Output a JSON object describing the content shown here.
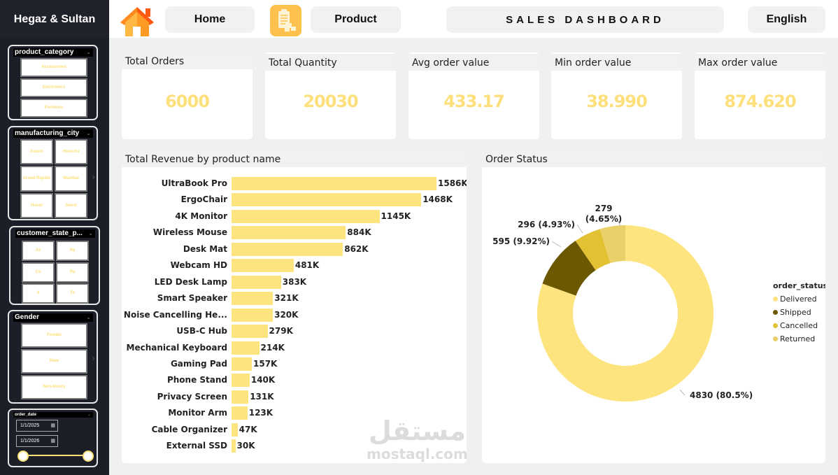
{
  "brand": "Hegaz & Sultan",
  "nav": {
    "home_label": "Home",
    "product_label": "Product",
    "dashboard_title": "SALES DASHBOARD",
    "language_label": "English",
    "home_icon": "house-icon",
    "product_icon": "clipboard-boxes-icon"
  },
  "slicers": {
    "product_category": {
      "title": "product_category",
      "options": [
        "Accessories",
        "Electronics",
        "Furniture"
      ]
    },
    "manufacturing_city": {
      "title": "manufacturing_city",
      "options": [
        "Austin",
        "Hsinchu",
        "Grand Rapids",
        "Mumbai",
        "Hanoi",
        "Seoul"
      ]
    },
    "customer_state": {
      "title": "customer_state_p...",
      "options": [
        "Az",
        "Ny",
        "Ca",
        "Pa",
        "Il",
        "Tx"
      ]
    },
    "gender": {
      "title": "Gender",
      "options": [
        "Female",
        "Male",
        "Non-binary"
      ]
    },
    "order_date": {
      "title": "order_date",
      "start": "1/1/2025",
      "end": "1/1/2026"
    }
  },
  "kpis": [
    {
      "title": "Total Orders",
      "value": "6000"
    },
    {
      "title": "Total Quantity",
      "value": "20030"
    },
    {
      "title": "Avg order value",
      "value": "433.17"
    },
    {
      "title": "Min order value",
      "value": "38.990"
    },
    {
      "title": "Max order value",
      "value": "874.620"
    }
  ],
  "colors": {
    "accent": "#fde47f",
    "sidebar_bg": "#1c1e28",
    "delivered": "#fde47f",
    "shipped": "#6b5800",
    "cancelled": "#e2c233",
    "returned": "#ead069"
  },
  "watermark": {
    "arabic": "مستقل",
    "latin": "mostaql.com"
  },
  "chart_data": [
    {
      "type": "bar",
      "orientation": "horizontal",
      "title": "Total Revenue by product name",
      "xlabel": "",
      "ylabel": "",
      "categories": [
        "UltraBook Pro",
        "ErgoChair",
        "4K Monitor",
        "Wireless Mouse",
        "Desk Mat",
        "Webcam HD",
        "LED Desk Lamp",
        "Smart Speaker",
        "Noise Cancelling He...",
        "USB-C Hub",
        "Mechanical Keyboard",
        "Gaming Pad",
        "Phone Stand",
        "Privacy Screen",
        "Monitor Arm",
        "Cable Organizer",
        "External SSD"
      ],
      "values": [
        1586,
        1468,
        1145,
        884,
        862,
        481,
        383,
        321,
        320,
        279,
        214,
        157,
        140,
        131,
        123,
        47,
        30
      ],
      "labels": [
        "1586K",
        "1468K",
        "1145K",
        "884K",
        "862K",
        "481K",
        "383K",
        "321K",
        "320K",
        "279K",
        "214K",
        "157K",
        "140K",
        "131K",
        "123K",
        "47K",
        "30K"
      ],
      "unit": "K",
      "xlim": [
        0,
        1586
      ],
      "grid": false
    },
    {
      "type": "pie",
      "variant": "donut",
      "title": "Order Status",
      "legend_title": "order_status",
      "legend_position": "right",
      "categories": [
        "Delivered",
        "Shipped",
        "Cancelled",
        "Returned"
      ],
      "values": [
        4830,
        595,
        296,
        279
      ],
      "percents": [
        80.5,
        9.92,
        4.93,
        4.65
      ],
      "labels": [
        "4830 (80.5%)",
        "595 (9.92%)",
        "296 (4.93%)",
        "279 (4.65%)"
      ]
    }
  ]
}
